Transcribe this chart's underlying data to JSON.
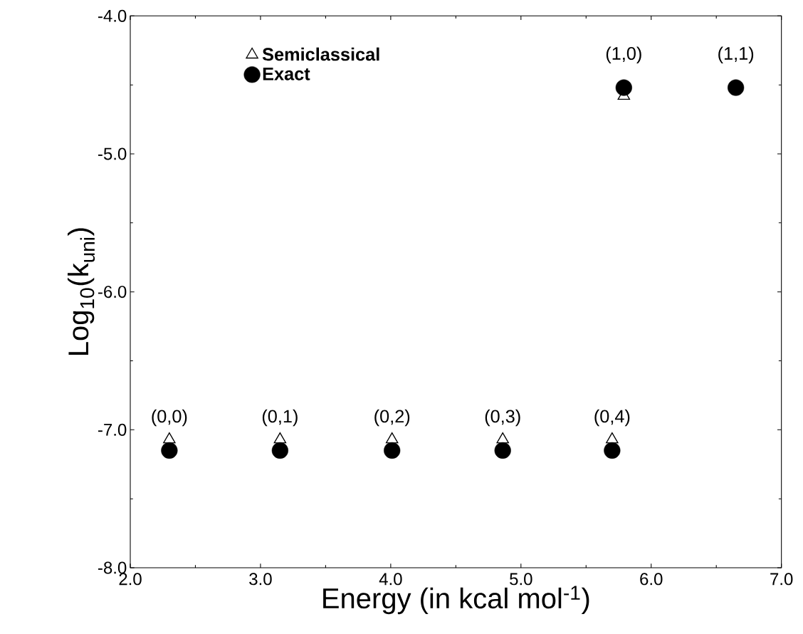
{
  "chart_data": {
    "type": "scatter",
    "xlabel": "Energy (in kcal mol$^{-1}$)",
    "ylabel": "Log$_{10}$(k$_{uni}$)",
    "x": [
      2.3,
      3.15,
      4.01,
      4.86,
      5.7,
      5.79,
      6.65
    ],
    "series": [
      {
        "name": "Semiclassical",
        "color": "#000000",
        "marker": "triangle",
        "values": [
          -7.07,
          -7.07,
          -7.07,
          -7.07,
          -7.07,
          -4.58,
          null
        ]
      },
      {
        "name": "Exact",
        "color": "#000000",
        "marker": "circle",
        "values": [
          -7.15,
          -7.15,
          -7.15,
          -7.15,
          -7.15,
          -4.52,
          -4.52
        ]
      }
    ],
    "xlim": [
      2.0,
      7.0
    ],
    "ylim": [
      -8.0,
      -4.0
    ],
    "xticks": [
      {
        "value": 2,
        "label": "2.0"
      },
      {
        "value": 3,
        "label": "3.0"
      },
      {
        "value": 4,
        "label": "4.0"
      },
      {
        "value": 5,
        "label": "5.0"
      },
      {
        "value": 6,
        "label": "6.0"
      },
      {
        "value": 7,
        "label": "7.0"
      }
    ],
    "yticks": [
      {
        "value": -8,
        "label": "-8.0"
      },
      {
        "value": -7,
        "label": "-7.0"
      },
      {
        "value": -6,
        "label": "-6.0"
      },
      {
        "value": -5,
        "label": "-5.0"
      },
      {
        "value": -4,
        "label": "-4.0"
      }
    ],
    "annotations": [
      {
        "text": "(0,0)",
        "x": 2.3,
        "y": -7.15
      },
      {
        "text": "(0,1)",
        "x": 3.15,
        "y": -7.15
      },
      {
        "text": "(0,2)",
        "x": 4.01,
        "y": -7.15
      },
      {
        "text": "(0,3)",
        "x": 4.86,
        "y": -7.15
      },
      {
        "text": "(0,4)",
        "x": 5.7,
        "y": -7.15
      },
      {
        "text": "(1,0)",
        "x": 5.79,
        "y": -4.52
      },
      {
        "text": "(1,1)",
        "x": 6.65,
        "y": -4.52
      }
    ],
    "legend": "top left",
    "grid": false
  }
}
